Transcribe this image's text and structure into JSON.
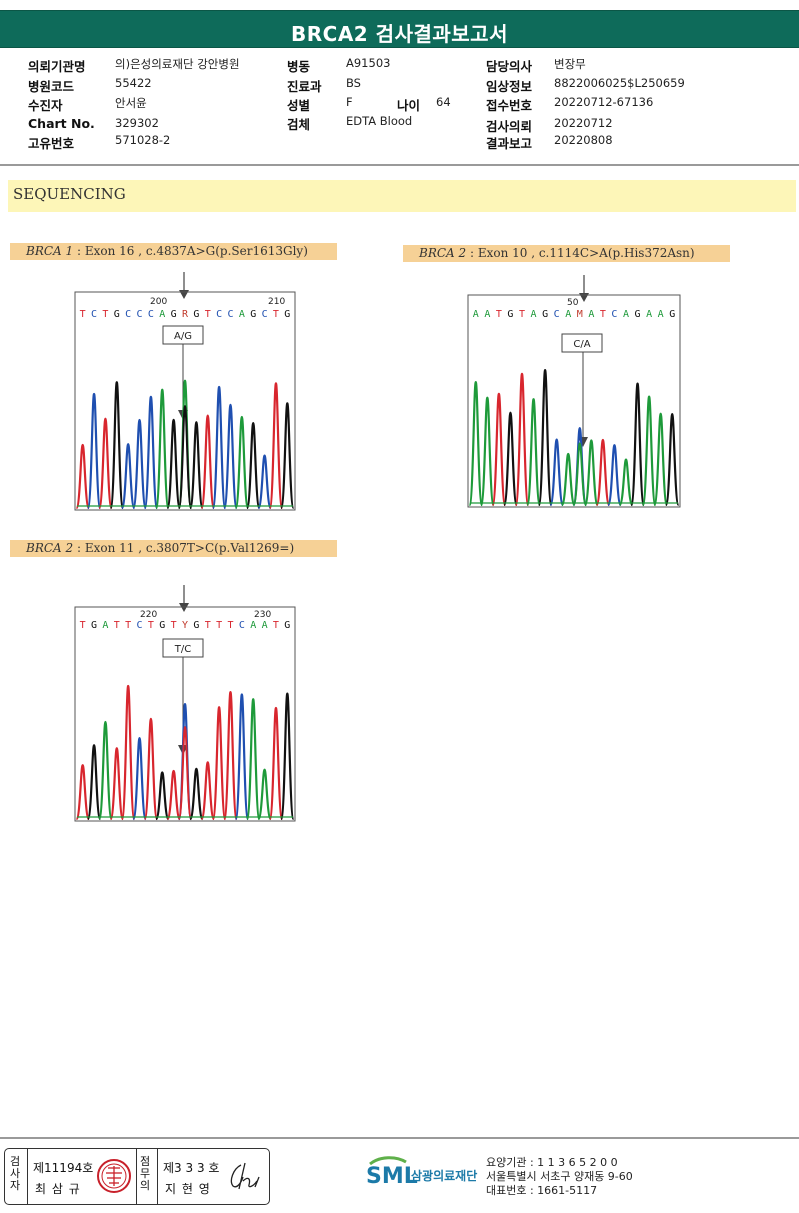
{
  "header": {
    "title": "BRCA2 검사결과보고서"
  },
  "info": {
    "col1": [
      {
        "label": "의뢰기관명",
        "value": "의)은성의료재단 강안병원"
      },
      {
        "label": "병원코드",
        "value": "55422"
      },
      {
        "label": "수진자",
        "value": "안서윤"
      },
      {
        "label": "Chart No.",
        "value": "329302"
      },
      {
        "label": "고유번호",
        "value": "571028-2"
      }
    ],
    "col2": [
      {
        "label": "병동",
        "value": "A91503"
      },
      {
        "label": "진료과",
        "value": "BS"
      },
      {
        "label": "성별",
        "value": "F"
      },
      {
        "label": "검체",
        "value": "EDTA Blood"
      }
    ],
    "age": {
      "label": "나이",
      "value": "64"
    },
    "col3": [
      {
        "label": "담당의사",
        "value": "변장무"
      },
      {
        "label": "임상정보",
        "value": "8822006025$L250659"
      },
      {
        "label": "접수번호",
        "value": "20220712-67136"
      },
      {
        "label": "검사의뢰",
        "value": "20220712"
      },
      {
        "label": "결과보고",
        "value": "20220808"
      }
    ]
  },
  "section": {
    "title": "SEQUENCING"
  },
  "variants": [
    {
      "gene": "BRCA 1",
      "detail": " : Exon 16 , c.4837A>G(p.Ser1613Gly)",
      "seq": "TCTGCCCAGRGTCCAGCTG",
      "pos_labels": [
        "200",
        "210"
      ],
      "call": "A/G"
    },
    {
      "gene": "BRCA 2",
      "detail": " : Exon 10 , c.1114C>A(p.His372Asn)",
      "seq": "AATGTAGCAMATCAGAAG",
      "pos_labels": [
        "50"
      ],
      "call": "C/A"
    },
    {
      "gene": "BRCA 2",
      "detail": " : Exon 11 , c.3807T>C(p.Val1269=)",
      "seq": "TGATTCTGTYGTTTCAATG",
      "pos_labels": [
        "220",
        "230"
      ],
      "call": "T/C"
    }
  ],
  "footer": {
    "examiner_vert": "검사자",
    "examiner_no": "제11194호",
    "examiner_name": "최 삼 규",
    "reviewer_vert": "점무의",
    "reviewer_no": "제3 3 3 호",
    "reviewer_name": "지 현 영",
    "org_name": "삼광의료재단",
    "logo_text": "SML",
    "contact": [
      "요양기관 : 1 1 3 6 5 2 0 0",
      "서울특별시 서초구 양재동 9-60",
      "대표번호 : 1661-5117"
    ]
  },
  "colors": {
    "title_bg": "#0e6b5a",
    "band_yellow": "#fdf6b8",
    "label_orange": "#f6d196",
    "A": "#1e9a3a",
    "C": "#1f4fb0",
    "G": "#111111",
    "T": "#d8262e"
  }
}
